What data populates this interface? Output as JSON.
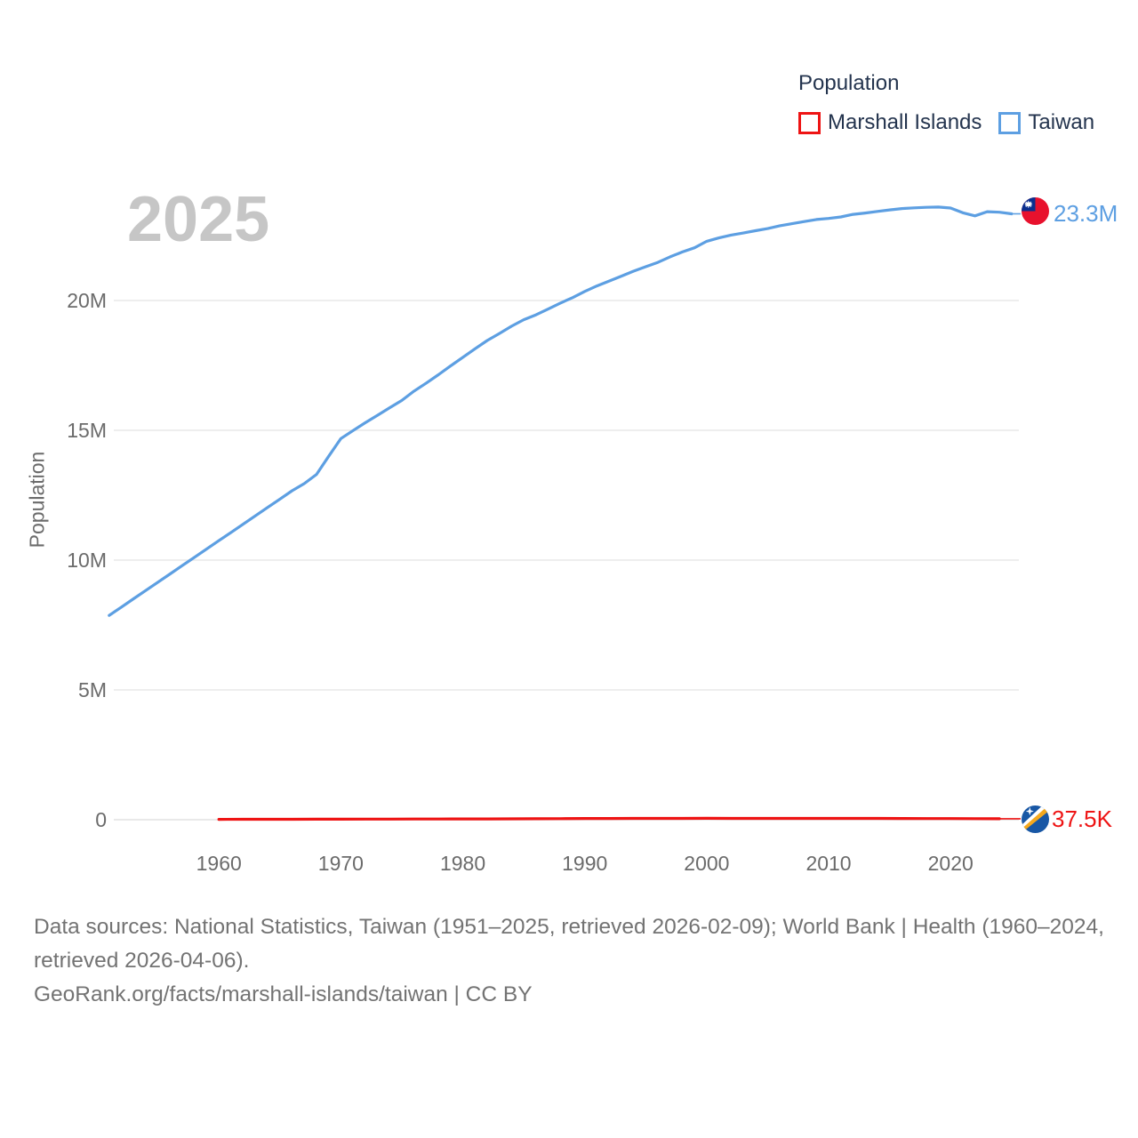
{
  "watermark_year": "2025",
  "legend": {
    "title": "Population",
    "items": [
      {
        "label": "Marshall Islands",
        "color": "#ee1414"
      },
      {
        "label": "Taiwan",
        "color": "#5d9fe2"
      }
    ]
  },
  "axes": {
    "y_label": "Population",
    "y_ticks": [
      {
        "label": "0",
        "value": 0
      },
      {
        "label": "5M",
        "value": 5
      },
      {
        "label": "10M",
        "value": 10
      },
      {
        "label": "15M",
        "value": 15
      },
      {
        "label": "20M",
        "value": 20
      }
    ],
    "x_ticks": [
      {
        "label": "1960",
        "year": 1960
      },
      {
        "label": "1970",
        "year": 1970
      },
      {
        "label": "1980",
        "year": 1980
      },
      {
        "label": "1990",
        "year": 1990
      },
      {
        "label": "2000",
        "year": 2000
      },
      {
        "label": "2010",
        "year": 2010
      },
      {
        "label": "2020",
        "year": 2020
      }
    ]
  },
  "end_labels": {
    "taiwan": {
      "text": "23.3M",
      "color": "#5d9fe2",
      "flag": "taiwan-flag"
    },
    "marshall": {
      "text": "37.5K",
      "color": "#ee1414",
      "flag": "marshall-islands-flag"
    }
  },
  "footer": {
    "sources_line": "Data sources: National Statistics, Taiwan (1951–2025, retrieved 2026-02-09); World Bank | Health (1960–2024, retrieved 2026-04-06).",
    "attribution_line": "GeoRank.org/facts/marshall-islands/taiwan | CC BY"
  },
  "chart_data": {
    "type": "line",
    "title": "Population",
    "xlabel": "",
    "ylabel": "Population",
    "y_unit": "millions of people",
    "ylim": [
      0,
      23.7
    ],
    "x_range": [
      1951,
      2025
    ],
    "grid": true,
    "legend_position": "top-right",
    "current_year_shown": "2025",
    "series": [
      {
        "name": "Marshall Islands",
        "color": "#ee1414",
        "end_value_label": "37.5K",
        "points": [
          [
            1960,
            0.0147
          ],
          [
            1962,
            0.016
          ],
          [
            1964,
            0.0172
          ],
          [
            1966,
            0.0185
          ],
          [
            1968,
            0.0199
          ],
          [
            1970,
            0.0216
          ],
          [
            1972,
            0.0234
          ],
          [
            1974,
            0.0252
          ],
          [
            1976,
            0.0271
          ],
          [
            1978,
            0.029
          ],
          [
            1980,
            0.0302
          ],
          [
            1982,
            0.032
          ],
          [
            1984,
            0.0343
          ],
          [
            1986,
            0.038
          ],
          [
            1988,
            0.0425
          ],
          [
            1990,
            0.0463
          ],
          [
            1992,
            0.0495
          ],
          [
            1994,
            0.0509
          ],
          [
            1996,
            0.0521
          ],
          [
            1998,
            0.0528
          ],
          [
            2000,
            0.0532
          ],
          [
            2002,
            0.053
          ],
          [
            2004,
            0.0527
          ],
          [
            2006,
            0.0525
          ],
          [
            2008,
            0.0524
          ],
          [
            2010,
            0.0524
          ],
          [
            2012,
            0.0518
          ],
          [
            2014,
            0.0505
          ],
          [
            2016,
            0.048
          ],
          [
            2018,
            0.0455
          ],
          [
            2020,
            0.0434
          ],
          [
            2022,
            0.0404
          ],
          [
            2024,
            0.0375
          ]
        ]
      },
      {
        "name": "Taiwan",
        "color": "#5d9fe2",
        "end_value_label": "23.3M",
        "points": [
          [
            1951,
            7.87
          ],
          [
            1952,
            8.19
          ],
          [
            1953,
            8.51
          ],
          [
            1954,
            8.83
          ],
          [
            1955,
            9.15
          ],
          [
            1956,
            9.47
          ],
          [
            1957,
            9.79
          ],
          [
            1958,
            10.11
          ],
          [
            1959,
            10.43
          ],
          [
            1960,
            10.75
          ],
          [
            1961,
            11.07
          ],
          [
            1962,
            11.39
          ],
          [
            1963,
            11.71
          ],
          [
            1964,
            12.03
          ],
          [
            1965,
            12.35
          ],
          [
            1966,
            12.67
          ],
          [
            1967,
            12.95
          ],
          [
            1968,
            13.3
          ],
          [
            1969,
            14.0
          ],
          [
            1970,
            14.68
          ],
          [
            1971,
            14.99
          ],
          [
            1972,
            15.29
          ],
          [
            1973,
            15.58
          ],
          [
            1974,
            15.87
          ],
          [
            1975,
            16.15
          ],
          [
            1976,
            16.51
          ],
          [
            1977,
            16.82
          ],
          [
            1978,
            17.14
          ],
          [
            1979,
            17.48
          ],
          [
            1980,
            17.81
          ],
          [
            1981,
            18.14
          ],
          [
            1982,
            18.46
          ],
          [
            1983,
            18.73
          ],
          [
            1984,
            19.01
          ],
          [
            1985,
            19.26
          ],
          [
            1986,
            19.45
          ],
          [
            1987,
            19.67
          ],
          [
            1988,
            19.9
          ],
          [
            1989,
            20.11
          ],
          [
            1990,
            20.35
          ],
          [
            1991,
            20.56
          ],
          [
            1992,
            20.75
          ],
          [
            1993,
            20.94
          ],
          [
            1994,
            21.13
          ],
          [
            1995,
            21.3
          ],
          [
            1996,
            21.47
          ],
          [
            1997,
            21.68
          ],
          [
            1998,
            21.87
          ],
          [
            1999,
            22.03
          ],
          [
            2000,
            22.28
          ],
          [
            2001,
            22.41
          ],
          [
            2002,
            22.52
          ],
          [
            2003,
            22.6
          ],
          [
            2004,
            22.69
          ],
          [
            2005,
            22.77
          ],
          [
            2006,
            22.88
          ],
          [
            2007,
            22.96
          ],
          [
            2008,
            23.04
          ],
          [
            2009,
            23.12
          ],
          [
            2010,
            23.16
          ],
          [
            2011,
            23.22
          ],
          [
            2012,
            23.32
          ],
          [
            2013,
            23.37
          ],
          [
            2014,
            23.43
          ],
          [
            2015,
            23.49
          ],
          [
            2016,
            23.54
          ],
          [
            2017,
            23.57
          ],
          [
            2018,
            23.59
          ],
          [
            2019,
            23.6
          ],
          [
            2020,
            23.56
          ],
          [
            2021,
            23.38
          ],
          [
            2022,
            23.26
          ],
          [
            2023,
            23.42
          ],
          [
            2024,
            23.4
          ],
          [
            2025,
            23.34
          ]
        ]
      }
    ]
  }
}
